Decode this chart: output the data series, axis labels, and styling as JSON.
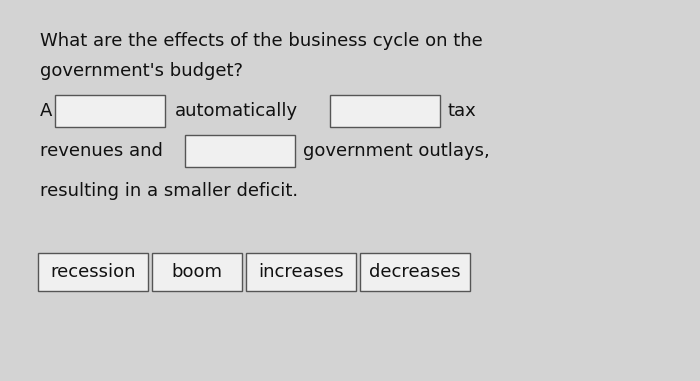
{
  "background_color": "#d3d3d3",
  "box_color": "#f0f0f0",
  "box_edge_color": "#555555",
  "text_color": "#111111",
  "title_line1": "What are the effects of the business cycle on the",
  "title_line2": "government's budget?",
  "line1_A": "A",
  "line1_mid": "automatically",
  "line1_suffix": "tax",
  "line2_prefix": "revenues and",
  "line2_suffix": "government outlays,",
  "line3": "resulting in a smaller deficit.",
  "answer_boxes": [
    "recession",
    "boom",
    "increases",
    "decreases"
  ],
  "font_size": 13.0
}
